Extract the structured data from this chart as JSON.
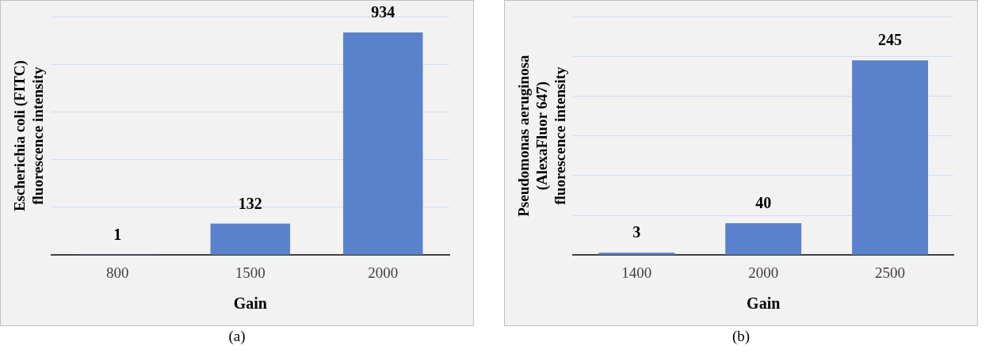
{
  "chart_data": [
    {
      "type": "bar",
      "xlabel": "Gain",
      "ylabel": "Escherichia coli (FITC)\nfluorescence intensity",
      "categories": [
        "800",
        "1500",
        "2000"
      ],
      "values": [
        1,
        132,
        934
      ],
      "color": "#5a82cc",
      "data_labels": true,
      "relative": false,
      "ylim": [
        0,
        1000
      ],
      "yticks": [
        {
          "value": 0,
          "label": null
        },
        {
          "value": 200,
          "label": null
        },
        {
          "value": 400,
          "label": null
        },
        {
          "value": 600,
          "label": null
        },
        {
          "value": 800,
          "label": null
        },
        {
          "value": 1000,
          "label": null
        }
      ],
      "grid": "y",
      "tick_labels": "x",
      "annotations": [
        "(a)"
      ]
    },
    {
      "type": "bar",
      "xlabel": "Gain",
      "ylabel": "Pseudomonas aeruginosa\n(AlexaFluor 647)\nfluorescence intensity",
      "categories": [
        "1400",
        "2000",
        "2500"
      ],
      "values": [
        3,
        40,
        245
      ],
      "color": "#5a82cc",
      "data_labels": true,
      "relative": false,
      "ylim": [
        0,
        300
      ],
      "yticks": [
        {
          "value": 0,
          "label": null
        },
        {
          "value": 50,
          "label": null
        },
        {
          "value": 100,
          "label": null
        },
        {
          "value": 150,
          "label": null
        },
        {
          "value": 200,
          "label": null
        },
        {
          "value": 250,
          "label": null
        },
        {
          "value": 300,
          "label": null
        }
      ],
      "grid": "y",
      "tick_labels": "x",
      "annotations": [
        "(b)"
      ]
    }
  ]
}
